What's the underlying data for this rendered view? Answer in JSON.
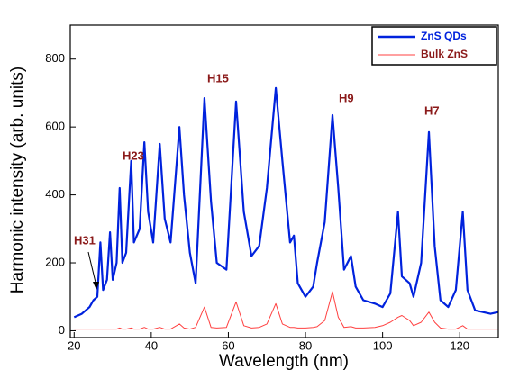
{
  "chart_data": {
    "type": "line",
    "x_label": "Wavelength (nm)",
    "y_label": "Harmonic intensity (arb. units)",
    "annotations": [
      "H31",
      "H23",
      "H15",
      "H9",
      "H7"
    ],
    "x": [
      20,
      22,
      24,
      25,
      26,
      26.8,
      27.5,
      28.5,
      29.3,
      30,
      31,
      31.8,
      32.5,
      33.5,
      34.8,
      35.5,
      37,
      38.2,
      39.2,
      40.5,
      42.2,
      43.5,
      45,
      47.3,
      48.5,
      50,
      51.5,
      53.8,
      55.5,
      57,
      59.5,
      62,
      64,
      66,
      68,
      70,
      72.3,
      74,
      76,
      77,
      78,
      80,
      82,
      83,
      85,
      87,
      88.5,
      90,
      91.8,
      93,
      95,
      98,
      100,
      102,
      104,
      105,
      107,
      108,
      110,
      112,
      113.5,
      115,
      117,
      119,
      120.8,
      122,
      124,
      126,
      128,
      130
    ],
    "series": [
      {
        "name": "ZnS QDs",
        "color": "#0022dd",
        "values": [
          40,
          50,
          70,
          90,
          100,
          260,
          120,
          150,
          290,
          150,
          200,
          420,
          200,
          230,
          500,
          260,
          300,
          555,
          350,
          260,
          550,
          330,
          260,
          600,
          400,
          230,
          140,
          685,
          380,
          200,
          180,
          675,
          350,
          220,
          250,
          420,
          715,
          500,
          260,
          280,
          140,
          100,
          130,
          200,
          320,
          635,
          420,
          180,
          220,
          130,
          90,
          80,
          70,
          110,
          350,
          160,
          140,
          100,
          200,
          585,
          250,
          90,
          70,
          120,
          350,
          120,
          60,
          55,
          50,
          55
        ]
      },
      {
        "name": "Bulk ZnS",
        "color": "#ff4040",
        "values": [
          5,
          5,
          5,
          5,
          5,
          5,
          5,
          5,
          5,
          5,
          5,
          8,
          5,
          5,
          8,
          5,
          5,
          10,
          5,
          5,
          10,
          5,
          5,
          20,
          8,
          5,
          10,
          70,
          10,
          8,
          10,
          85,
          15,
          8,
          10,
          20,
          80,
          20,
          10,
          10,
          8,
          8,
          10,
          12,
          30,
          115,
          40,
          10,
          12,
          8,
          8,
          10,
          15,
          25,
          40,
          45,
          30,
          15,
          25,
          55,
          25,
          8,
          5,
          5,
          15,
          5,
          5,
          5,
          5,
          5
        ]
      }
    ],
    "xlim": [
      19,
      130
    ],
    "ylim": [
      -20,
      900
    ],
    "xticks": [
      20,
      40,
      60,
      80,
      100,
      120
    ],
    "yticks": [
      0,
      200,
      400,
      600,
      800
    ],
    "legend": "upper right"
  }
}
